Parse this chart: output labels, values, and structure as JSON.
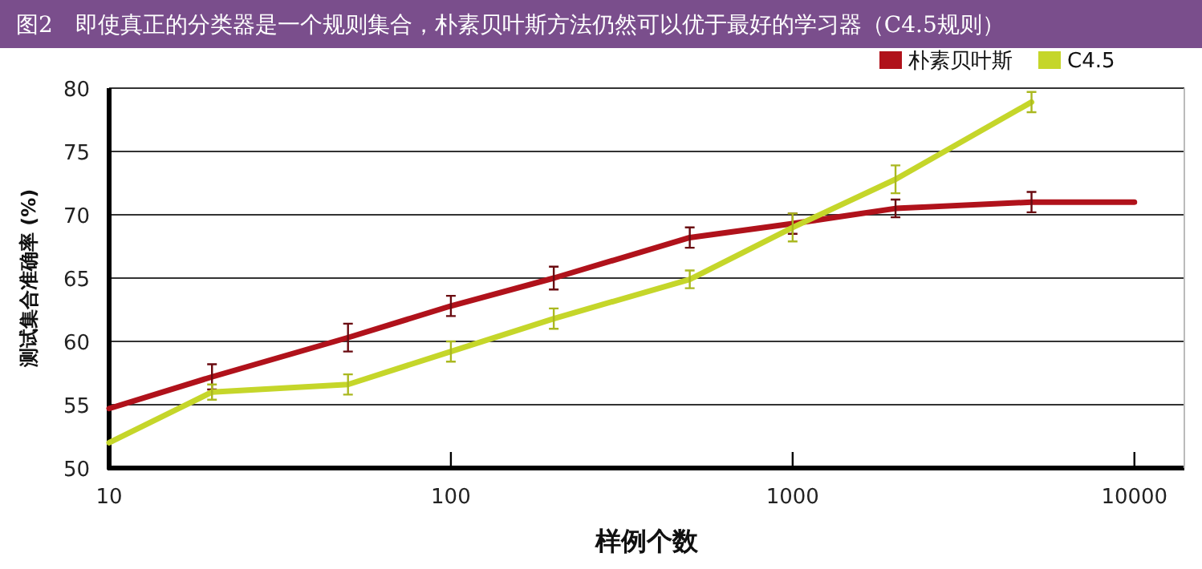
{
  "chart_data": {
    "type": "line",
    "title": "图2　即使真正的分类器是一个规则集合，朴素贝叶斯方法仍然可以优于最好的学习器（C4.5规则）",
    "xlabel": "样例个数",
    "ylabel": "测试集合准确率 (%)",
    "log": "x",
    "xlim": [
      10,
      14000
    ],
    "xticks": [
      10,
      100,
      1000,
      10000
    ],
    "ylim": [
      50,
      80
    ],
    "yticks": [
      50,
      55,
      60,
      65,
      70,
      75,
      80
    ],
    "grid": "y",
    "legend": "top right",
    "marker": "none",
    "line_style": "solid",
    "series": [
      {
        "name": "朴素贝叶斯",
        "color": "#b0121b",
        "x": [
          10,
          20,
          50,
          100,
          200,
          500,
          1000,
          2000,
          5000,
          10000
        ],
        "values": [
          54.7,
          57.2,
          60.3,
          62.8,
          65,
          68.2,
          69.3,
          70.5,
          71,
          71
        ],
        "errors": [
          null,
          1,
          1.1,
          0.8,
          0.9,
          0.8,
          0.8,
          0.7,
          0.8,
          null
        ]
      },
      {
        "name": "C4.5",
        "color": "#c5d62a",
        "x": [
          10,
          20,
          50,
          100,
          200,
          500,
          1000,
          2000,
          5000
        ],
        "values": [
          52,
          56,
          56.6,
          59.2,
          61.8,
          64.9,
          69,
          72.8,
          78.9
        ],
        "errors": [
          null,
          0.6,
          0.8,
          0.8,
          0.8,
          0.7,
          1.1,
          1.1,
          0.8
        ]
      }
    ]
  }
}
